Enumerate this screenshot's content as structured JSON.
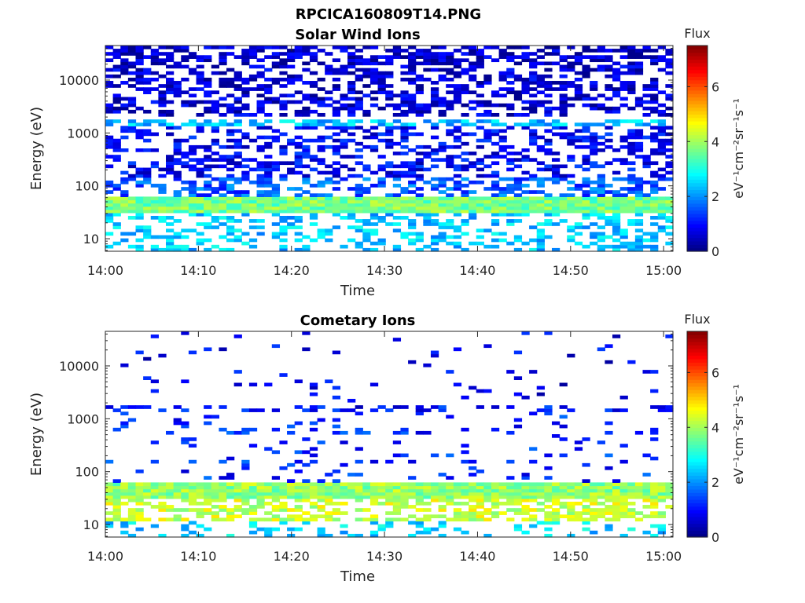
{
  "figure_title": "RPCICA160809T14.PNG",
  "chart_data": [
    {
      "type": "heatmap",
      "title": "Solar Wind Ions",
      "xlabel": "Time",
      "ylabel": "Energy (eV)",
      "y_scale": "log",
      "ylim": [
        5.8,
        45000
      ],
      "xlim": [
        "14:00",
        "15:01"
      ],
      "x_tick_labels": [
        "14:00",
        "14:10",
        "14:20",
        "14:30",
        "14:40",
        "14:50",
        "15:00"
      ],
      "y_tick_labels": [
        "10",
        "100",
        "1000",
        "10000"
      ],
      "y_tick_values": [
        10,
        100,
        1000,
        10000
      ],
      "colorbar": {
        "title": "Flux",
        "label": "eV⁻¹cm⁻²sr⁻¹s⁻¹",
        "range": [
          0,
          7.5
        ],
        "tick_labels": [
          "0",
          "2",
          "4",
          "6"
        ],
        "tick_values": [
          0,
          2,
          4,
          6
        ],
        "colormap": "jet"
      },
      "x_bins": 75,
      "energy_bands": [
        {
          "energy_range": [
            20000,
            45000
          ],
          "typical_flux": 0.5,
          "occupancy": 0.55
        },
        {
          "energy_range": [
            2000,
            20000
          ],
          "typical_flux": 0.6,
          "occupancy": 0.45
        },
        {
          "energy_range": [
            1300,
            1800
          ],
          "typical_flux": 2.4,
          "occupancy": 0.6
        },
        {
          "energy_range": [
            150,
            1300
          ],
          "typical_flux": 0.9,
          "occupancy": 0.4
        },
        {
          "energy_range": [
            65,
            150
          ],
          "typical_flux": 1.6,
          "occupancy": 0.45
        },
        {
          "energy_range": [
            30,
            60
          ],
          "typical_flux": 3.7,
          "occupancy": 1.0
        },
        {
          "energy_range": [
            6,
            30
          ],
          "typical_flux": 2.4,
          "occupancy": 0.35
        }
      ]
    },
    {
      "type": "heatmap",
      "title": "Cometary Ions",
      "xlabel": "Time",
      "ylabel": "Energy (eV)",
      "y_scale": "log",
      "ylim": [
        5.8,
        45000
      ],
      "xlim": [
        "14:00",
        "15:01"
      ],
      "x_tick_labels": [
        "14:00",
        "14:10",
        "14:20",
        "14:30",
        "14:40",
        "14:50",
        "15:00"
      ],
      "y_tick_labels": [
        "10",
        "100",
        "1000",
        "10000"
      ],
      "y_tick_values": [
        10,
        100,
        1000,
        10000
      ],
      "colorbar": {
        "title": "Flux",
        "label": "eV⁻¹cm⁻²sr⁻¹s⁻¹",
        "range": [
          0,
          7.5
        ],
        "tick_labels": [
          "0",
          "2",
          "4",
          "6"
        ],
        "tick_values": [
          0,
          2,
          4,
          6
        ],
        "colormap": "jet"
      },
      "x_bins": 75,
      "energy_bands": [
        {
          "energy_range": [
            2000,
            45000
          ],
          "typical_flux": 0.8,
          "occupancy": 0.03
        },
        {
          "energy_range": [
            1300,
            1700
          ],
          "typical_flux": 1.0,
          "occupancy": 0.35
        },
        {
          "energy_range": [
            65,
            1300
          ],
          "typical_flux": 1.2,
          "occupancy": 0.1
        },
        {
          "energy_range": [
            30,
            60
          ],
          "typical_flux": 3.9,
          "occupancy": 1.0
        },
        {
          "energy_range": [
            12,
            30
          ],
          "typical_flux": 4.3,
          "occupancy": 0.55
        },
        {
          "energy_range": [
            6,
            12
          ],
          "typical_flux": 2.5,
          "occupancy": 0.25
        }
      ]
    }
  ]
}
